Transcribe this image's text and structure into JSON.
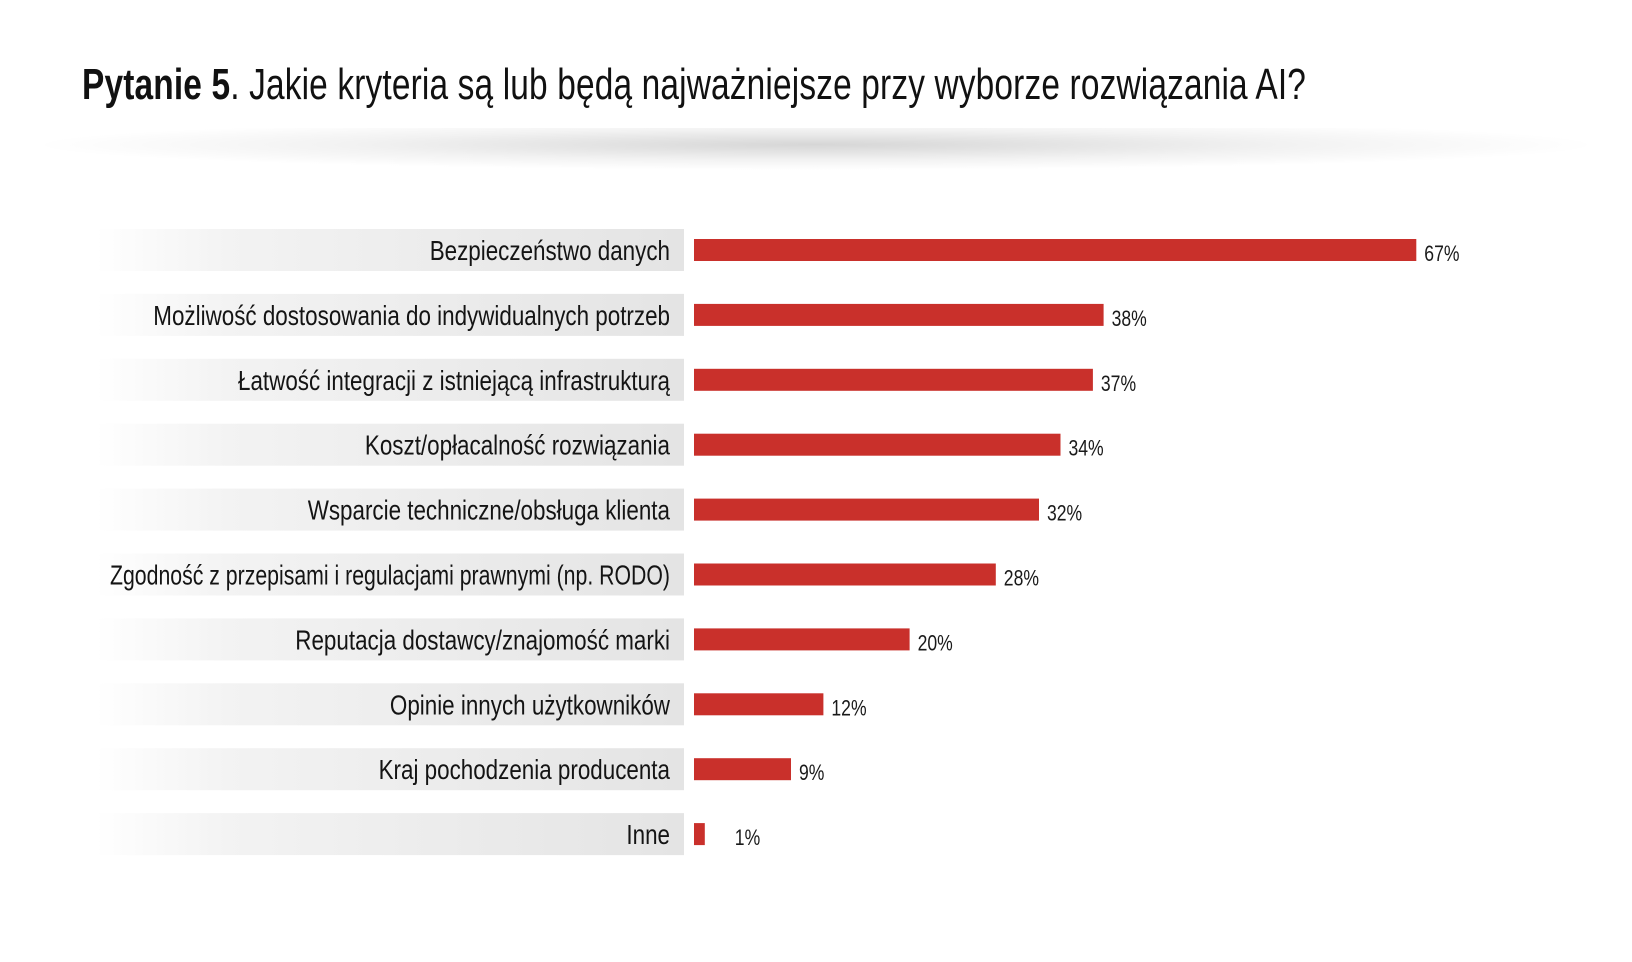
{
  "title": {
    "prefix": "Pytanie 5",
    "text": ". Jakie kryteria są lub będą najważniejsze przy wyborze rozwiązania AI?"
  },
  "colors": {
    "bar": "#c9302b",
    "label_band": "#e6e6e6"
  },
  "chart_data": {
    "type": "bar",
    "orientation": "horizontal",
    "unit": "%",
    "categories": [
      "Bezpieczeństwo danych",
      "Możliwość dostosowania do indywidualnych potrzeb",
      "Łatwość integracji z istniejącą infrastrukturą",
      "Koszt/opłacalność rozwiązania",
      "Wsparcie techniczne/obsługa klienta",
      "Zgodność z przepisami i regulacjami prawnymi (np. RODO)",
      "Reputacja dostawcy/znajomość marki",
      "Opinie innych użytkowników",
      "Kraj pochodzenia producenta",
      "Inne"
    ],
    "values": [
      67,
      38,
      37,
      34,
      32,
      28,
      20,
      12,
      9,
      1
    ],
    "value_labels": [
      "67%",
      "38%",
      "37%",
      "34%",
      "32%",
      "28%",
      "20%",
      "12%",
      "9%",
      "1%"
    ],
    "grid": false,
    "legend": "none"
  }
}
